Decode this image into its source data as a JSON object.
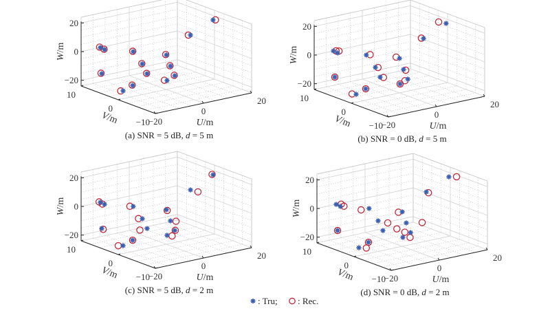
{
  "legend": {
    "true_label": ": Tru;",
    "rec_label": ": Rec.",
    "true_color": "#3b5fb0",
    "rec_color": "#c0283a"
  },
  "chart_data": [
    {
      "type": "scatter",
      "subtype": "scatter3d",
      "caption": {
        "prefix": "(a) SNR = 5 dB, ",
        "var": "d",
        "suffix": " = 5 m"
      },
      "xlabel": "U/m",
      "ylabel": "V/m",
      "zlabel": "W/m",
      "xlim": [
        -20,
        20
      ],
      "ylim": [
        -10,
        10
      ],
      "zlim": [
        -24,
        24
      ],
      "xticks": [
        "-20",
        "0",
        "20"
      ],
      "yticks": [
        "10",
        "0",
        "-10"
      ],
      "zticks": [
        "20",
        "0",
        "-20"
      ],
      "grid": true,
      "series": [
        {
          "name": "Tru",
          "marker": "star",
          "points": [
            [
              19.4,
              0,
              17.5
            ],
            [
              13.1,
              2,
              7.3
            ],
            [
              -15.1,
              8,
              3.0
            ],
            [
              -14.9,
              7,
              2.5
            ],
            [
              -7.6,
              4,
              1.3
            ],
            [
              6.2,
              4,
              -6.0
            ],
            [
              -10,
              0,
              -2.6
            ],
            [
              1.7,
              0,
              -8.3
            ],
            [
              -17.6,
              6,
              -12.4
            ],
            [
              -11.1,
              -2,
              -7.1
            ],
            [
              0.4,
              -2,
              -12.6
            ],
            [
              -5.9,
              -4,
              -11.8
            ],
            [
              -17.1,
              -2,
              -13.1
            ],
            [
              -18,
              0,
              -18.5
            ]
          ]
        },
        {
          "name": "Rec",
          "marker": "circle",
          "points": [
            [
              20.4,
              0,
              17.2
            ],
            [
              12.2,
              2,
              7.6
            ],
            [
              -15.4,
              8,
              3.4
            ],
            [
              -15.1,
              7,
              2.8
            ],
            [
              -7.8,
              4,
              1.6
            ],
            [
              5.9,
              4,
              -5.6
            ],
            [
              -10.2,
              0,
              -2.3
            ],
            [
              1.5,
              0,
              -8.0
            ],
            [
              -17.9,
              6,
              -12.0
            ],
            [
              -11.3,
              -2,
              -6.8
            ],
            [
              0.2,
              -2,
              -12.3
            ],
            [
              -7.0,
              -4,
              -11.2
            ],
            [
              -17.3,
              -2,
              -12.8
            ],
            [
              -19.0,
              0,
              -18.2
            ]
          ]
        }
      ]
    },
    {
      "type": "scatter",
      "subtype": "scatter3d",
      "caption": {
        "prefix": "(b) SNR = 0 dB, ",
        "var": "d",
        "suffix": " = 5 m"
      },
      "xlabel": "U/m",
      "ylabel": "V/m",
      "zlabel": "W/m",
      "xlim": [
        -20,
        20
      ],
      "ylim": [
        -10,
        10
      ],
      "zlim": [
        -24,
        24
      ],
      "xticks": [
        "-20",
        "0",
        "20"
      ],
      "yticks": [
        "10",
        "0",
        "-10"
      ],
      "zticks": [
        "20",
        "0",
        "-20"
      ],
      "grid": true,
      "series": [
        {
          "name": "Tru",
          "marker": "star",
          "points": [
            [
              19.4,
              0,
              17.5
            ],
            [
              13.1,
              2,
              7.3
            ],
            [
              -15.1,
              8,
              3.0
            ],
            [
              -14.9,
              7,
              2.5
            ],
            [
              -7.6,
              4,
              1.3
            ],
            [
              6.2,
              4,
              -6.0
            ],
            [
              -10,
              0,
              -2.6
            ],
            [
              1.7,
              0,
              -8.3
            ],
            [
              -17.6,
              6,
              -12.4
            ],
            [
              -11.1,
              -2,
              -7.1
            ],
            [
              0.4,
              -2,
              -12.6
            ],
            [
              -5.9,
              -4,
              -11.8
            ],
            [
              -17.1,
              -2,
              -13.1
            ],
            [
              -18,
              0,
              -18.5
            ]
          ]
        },
        {
          "name": "Rec",
          "marker": "circle",
          "points": [
            [
              16.3,
              0,
              19.6
            ],
            [
              12.2,
              2,
              7.9
            ],
            [
              -14.0,
              8,
              2.7
            ],
            [
              -14.3,
              7,
              3.6
            ],
            [
              -6.0,
              4,
              1.0
            ],
            [
              4.8,
              4,
              -4.6
            ],
            [
              -8.9,
              0,
              -3.1
            ],
            [
              2.6,
              0,
              -9.1
            ],
            [
              -17.6,
              6,
              -12.4
            ],
            [
              -9.7,
              -2,
              -7.8
            ],
            [
              -0.8,
              -2,
              -13.3
            ],
            [
              -5.9,
              -4,
              -11.8
            ],
            [
              -17.1,
              -2,
              -13.1
            ],
            [
              -19.7,
              0,
              -17.6
            ]
          ]
        }
      ]
    },
    {
      "type": "scatter",
      "subtype": "scatter3d",
      "caption": {
        "prefix": "(c) SNR = 5 dB, ",
        "var": "d",
        "suffix": " = 2 m"
      },
      "xlabel": "U/m",
      "ylabel": "V/m",
      "zlabel": "W/m",
      "xlim": [
        -20,
        20
      ],
      "ylim": [
        -10,
        10
      ],
      "zlim": [
        -24,
        24
      ],
      "xticks": [
        "-20",
        "0",
        "20"
      ],
      "yticks": [
        "10",
        "0",
        "-10"
      ],
      "zticks": [
        "20",
        "0",
        "-20"
      ],
      "grid": true,
      "series": [
        {
          "name": "Tru",
          "marker": "star",
          "points": [
            [
              19.4,
              0,
              17.5
            ],
            [
              13.1,
              2,
              7.3
            ],
            [
              -15.1,
              8,
              3.0
            ],
            [
              -14.9,
              7,
              2.5
            ],
            [
              -7.6,
              4,
              1.3
            ],
            [
              6.2,
              4,
              -6.0
            ],
            [
              -10,
              0,
              -2.6
            ],
            [
              1.7,
              0,
              -8.3
            ],
            [
              -17.6,
              6,
              -12.4
            ],
            [
              -11.1,
              -2,
              -7.1
            ],
            [
              0.4,
              -2,
              -12.6
            ],
            [
              -5.9,
              -4,
              -11.8
            ],
            [
              -17.1,
              -2,
              -13.1
            ],
            [
              -18,
              0,
              -18.5
            ]
          ]
        },
        {
          "name": "Rec",
          "marker": "circle",
          "points": [
            [
              19.0,
              0,
              17.9
            ],
            [
              16.2,
              2,
              4.8
            ],
            [
              -15.6,
              8,
              3.5
            ],
            [
              -15.8,
              7,
              3.0
            ],
            [
              -9.0,
              4,
              1.9
            ],
            [
              6.5,
              4,
              -6.6
            ],
            [
              -11.6,
              0,
              -1.9
            ],
            [
              4.0,
              0,
              -9.4
            ],
            [
              -17.0,
              6,
              -13.2
            ],
            [
              -14.1,
              -2,
              -7.1
            ],
            [
              0.6,
              -2,
              -12.6
            ],
            [
              -3.8,
              -4,
              -13.0
            ],
            [
              -17.1,
              -2,
              -13.1
            ],
            [
              -20.0,
              0,
              -17.8
            ]
          ]
        }
      ]
    },
    {
      "type": "scatter",
      "subtype": "scatter3d",
      "caption": {
        "prefix": "(d) SNR = 0 dB, ",
        "var": "d",
        "suffix": " = 2 m"
      },
      "xlabel": "U/m",
      "ylabel": "V/m",
      "zlabel": "W/m",
      "xlim": [
        -20,
        20
      ],
      "ylim": [
        -10,
        10
      ],
      "zlim": [
        -24,
        24
      ],
      "xticks": [
        "-20",
        "0",
        "20"
      ],
      "yticks": [
        "10",
        "0",
        "-10"
      ],
      "zticks": [
        "20",
        "0",
        "-20"
      ],
      "grid": true,
      "series": [
        {
          "name": "Tru",
          "marker": "star",
          "points": [
            [
              19.4,
              0,
              17.5
            ],
            [
              13.1,
              2,
              7.3
            ],
            [
              -15.1,
              8,
              3.0
            ],
            [
              -14.9,
              7,
              2.5
            ],
            [
              -7.6,
              4,
              1.3
            ],
            [
              6.2,
              4,
              -6.0
            ],
            [
              -10,
              0,
              -2.6
            ],
            [
              1.7,
              0,
              -8.3
            ],
            [
              -17.6,
              6,
              -12.4
            ],
            [
              -11.1,
              -2,
              -7.1
            ],
            [
              0.4,
              -2,
              -12.6
            ],
            [
              -5.9,
              -4,
              -11.8
            ],
            [
              -17.1,
              -2,
              -13.1
            ],
            [
              -18,
              0,
              -18.5
            ]
          ]
        },
        {
          "name": "Rec",
          "marker": "circle",
          "points": [
            [
              22.6,
              0,
              16.4
            ],
            [
              14.0,
              2,
              6.4
            ],
            [
              -13.0,
              8,
              2.4
            ],
            [
              -13.4,
              7,
              2.1
            ],
            [
              -10.9,
              4,
              1.5
            ],
            [
              4.6,
              4,
              -5.7
            ],
            [
              -6.0,
              0,
              -5.5
            ],
            [
              8.3,
              0,
              -10.4
            ],
            [
              -17.6,
              6,
              -12.4
            ],
            [
              -5.3,
              -2,
              -8.0
            ],
            [
              -2.0,
              -2,
              -11.5
            ],
            [
              -2.9,
              -4,
              -12.9
            ],
            [
              -17.1,
              -2,
              -13.1
            ],
            [
              -14.9,
              0,
              -19.8
            ]
          ]
        }
      ]
    }
  ]
}
